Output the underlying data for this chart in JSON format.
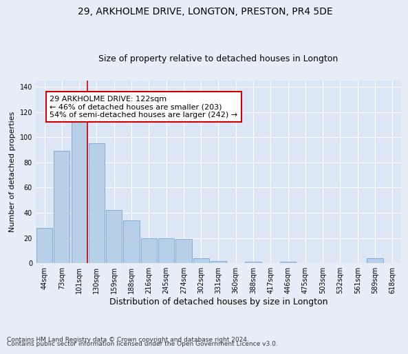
{
  "title1": "29, ARKHOLME DRIVE, LONGTON, PRESTON, PR4 5DE",
  "title2": "Size of property relative to detached houses in Longton",
  "xlabel": "Distribution of detached houses by size in Longton",
  "ylabel": "Number of detached properties",
  "footnote1": "Contains HM Land Registry data © Crown copyright and database right 2024.",
  "footnote2": "Contains public sector information licensed under the Open Government Licence v3.0.",
  "bin_labels": [
    "44sqm",
    "73sqm",
    "101sqm",
    "130sqm",
    "159sqm",
    "188sqm",
    "216sqm",
    "245sqm",
    "274sqm",
    "302sqm",
    "331sqm",
    "360sqm",
    "388sqm",
    "417sqm",
    "446sqm",
    "475sqm",
    "503sqm",
    "532sqm",
    "561sqm",
    "589sqm",
    "618sqm"
  ],
  "bar_values": [
    28,
    89,
    112,
    95,
    42,
    34,
    20,
    20,
    19,
    4,
    2,
    0,
    1,
    0,
    1,
    0,
    0,
    0,
    0,
    4,
    0
  ],
  "bar_color": "#b8cfe8",
  "bar_edge_color": "#6699cc",
  "vline_x_index": 2.48,
  "vline_color": "#cc0000",
  "annotation_text": "29 ARKHOLME DRIVE: 122sqm\n← 46% of detached houses are smaller (203)\n54% of semi-detached houses are larger (242) →",
  "annotation_box_color": "#ffffff",
  "annotation_box_edge": "#cc0000",
  "ylim": [
    0,
    145
  ],
  "yticks": [
    0,
    20,
    40,
    60,
    80,
    100,
    120,
    140
  ],
  "bg_color": "#dce6f5",
  "fig_bg_color": "#e8eef8",
  "grid_color": "#ffffff",
  "title1_fontsize": 10,
  "title2_fontsize": 9,
  "xlabel_fontsize": 9,
  "ylabel_fontsize": 8,
  "tick_fontsize": 7,
  "annotation_fontsize": 8,
  "footnote_fontsize": 6.5
}
